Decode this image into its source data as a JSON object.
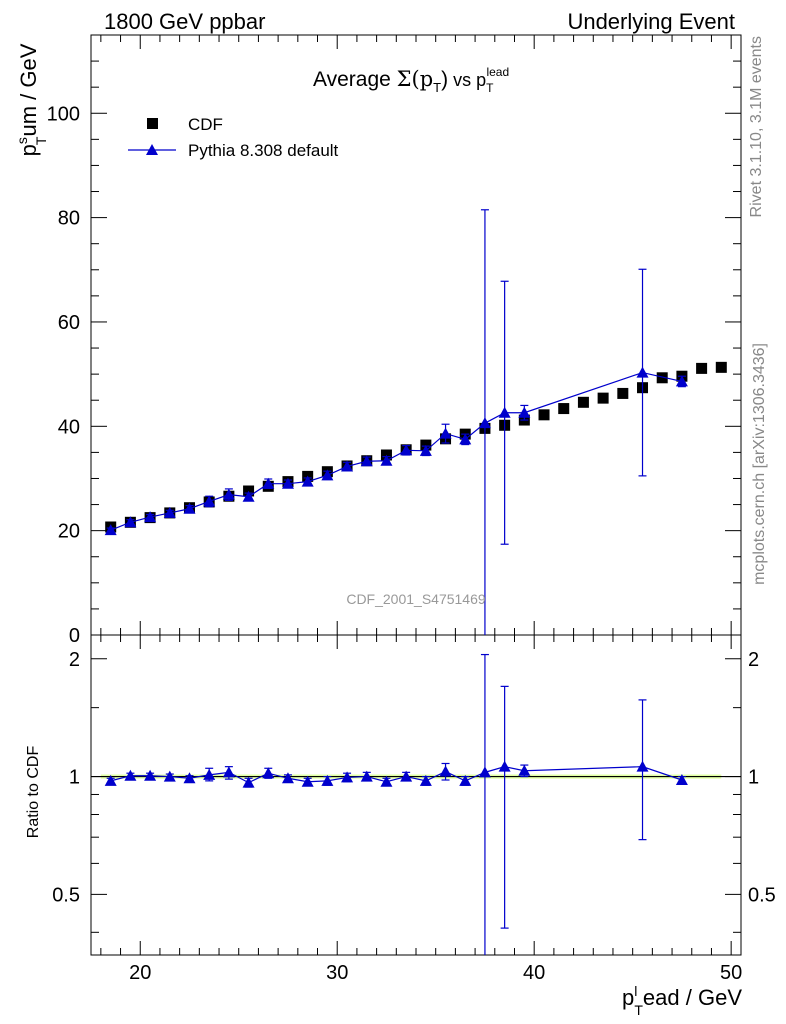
{
  "header": {
    "left": "1800 GeV ppbar",
    "right": "Underlying Event"
  },
  "side_labels": {
    "rivet": "Rivet 3.1.10,  3.1M events",
    "mcplots": "mcplots.cern.ch [arXiv:1306.3436]"
  },
  "analysis_id": "CDF_2001_S4751469",
  "chart_data": {
    "type": "scatter",
    "title": "Average Σ(p_T) vs p_T^lead",
    "title_parts": {
      "main": "Average ",
      "sigma": "Σ(p",
      "sub": "T",
      "close": ")",
      "vs": " vs p",
      "vs_sub": "T",
      "vs_sup": "lead"
    },
    "ylabel_parts": {
      "p": "p",
      "sup": "s",
      "sub": "T",
      "rest": "um / GeV"
    },
    "xlabel_parts": {
      "p": "p",
      "sup": "l",
      "sub": "T",
      "rest": "ead / GeV"
    },
    "ratio_ylabel": "Ratio to CDF",
    "xlim": [
      17.5,
      50.5
    ],
    "ylim": [
      0,
      115
    ],
    "ratio_ylim": [
      0.35,
      2.3
    ],
    "ratio_log": true,
    "x_ticks": [
      20,
      30,
      40,
      50
    ],
    "y_ticks": [
      0,
      20,
      40,
      60,
      80,
      100
    ],
    "ratio_ticks": [
      0.5,
      1,
      2
    ],
    "legend_placement": "top-left",
    "series": [
      {
        "name": "CDF",
        "marker": "square",
        "color": "#000000",
        "x": [
          18.5,
          19.5,
          20.5,
          21.5,
          22.5,
          23.5,
          24.5,
          25.5,
          26.5,
          27.5,
          28.5,
          29.5,
          30.5,
          31.5,
          32.5,
          33.5,
          34.5,
          35.5,
          36.5,
          37.5,
          38.5,
          39.5,
          40.5,
          41.5,
          42.5,
          43.5,
          44.5,
          45.5,
          46.5,
          47.5,
          48.5,
          49.5
        ],
        "y": [
          20.7,
          21.6,
          22.5,
          23.4,
          24.4,
          25.5,
          26.6,
          27.6,
          28.5,
          29.4,
          30.4,
          31.3,
          32.4,
          33.4,
          34.5,
          35.5,
          36.4,
          37.6,
          38.5,
          39.6,
          40.2,
          41.2,
          42.2,
          43.4,
          44.6,
          45.4,
          46.3,
          47.4,
          49.3,
          49.6,
          51.1,
          51.3
        ]
      },
      {
        "name": "Pythia 8.308 default",
        "marker": "triangle",
        "color": "#0000cc",
        "x": [
          18.5,
          19.5,
          20.5,
          21.5,
          22.5,
          23.5,
          24.5,
          25.5,
          26.5,
          27.5,
          28.5,
          29.5,
          30.5,
          31.5,
          32.5,
          33.5,
          34.5,
          35.5,
          36.5,
          37.5,
          38.5,
          39.5,
          45.5,
          47.5
        ],
        "y": [
          20.1,
          21.6,
          22.6,
          23.4,
          24.2,
          25.6,
          26.9,
          26.5,
          29.0,
          29.0,
          29.4,
          30.6,
          32.3,
          33.3,
          33.4,
          35.4,
          35.3,
          38.6,
          37.5,
          40.6,
          42.6,
          42.6,
          50.3,
          48.6
        ],
        "yerr": [
          0.4,
          0.5,
          0.5,
          0.5,
          0.6,
          1.0,
          1.1,
          0.7,
          0.9,
          0.7,
          0.7,
          0.8,
          0.8,
          0.8,
          0.8,
          0.9,
          0.9,
          1.8,
          1.0,
          40.9,
          25.2,
          1.4,
          19.8,
          1.0
        ],
        "ratio": [
          0.975,
          1.005,
          1.005,
          1.0,
          0.99,
          1.01,
          1.025,
          0.965,
          1.02,
          0.99,
          0.97,
          0.975,
          0.995,
          1.0,
          0.97,
          1.0,
          0.975,
          1.03,
          0.975,
          1.025,
          1.06,
          1.035,
          1.06,
          0.98
        ],
        "ratio_lo": [
          0.96,
          0.99,
          0.99,
          0.985,
          0.975,
          0.975,
          0.985,
          0.94,
          0.99,
          0.97,
          0.95,
          0.95,
          0.97,
          0.975,
          0.95,
          0.975,
          0.95,
          0.98,
          0.95,
          0.0,
          0.41,
          1.0,
          0.69,
          0.96
        ],
        "ratio_hi": [
          0.99,
          1.02,
          1.02,
          1.015,
          1.005,
          1.05,
          1.06,
          0.99,
          1.05,
          1.01,
          0.99,
          1.0,
          1.02,
          1.025,
          0.99,
          1.025,
          1.0,
          1.08,
          1.0,
          2.05,
          1.7,
          1.07,
          1.57,
          1.0
        ]
      }
    ]
  }
}
